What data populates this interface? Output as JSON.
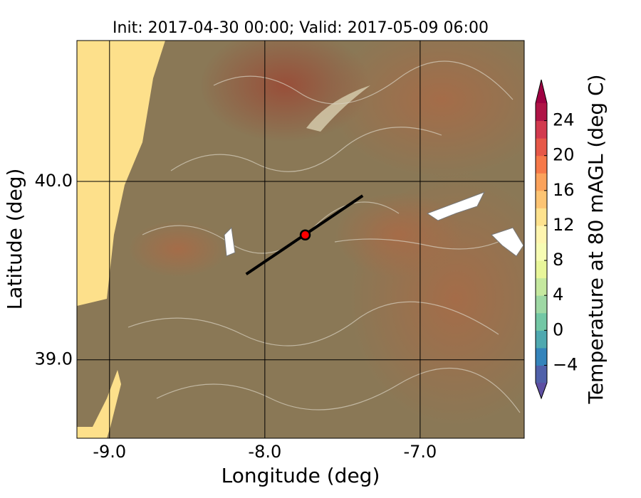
{
  "chart_data": {
    "type": "map",
    "title": "Init: 2017-04-30 00:00; Valid: 2017-05-09 06:00",
    "xlabel": "Longitude (deg)",
    "ylabel": "Latitude (deg)",
    "xlim": [
      -9.21,
      -6.33
    ],
    "ylim": [
      38.56,
      40.79
    ],
    "xticks": [
      {
        "value": -9,
        "label": "-9.0"
      },
      {
        "value": -8,
        "label": "-8.0"
      },
      {
        "value": -7,
        "label": "-7.0"
      }
    ],
    "yticks": [
      {
        "value": 39,
        "label": "39.0"
      },
      {
        "value": 40,
        "label": "40.0"
      }
    ],
    "grid": true,
    "transect": {
      "lon": [
        -8.12,
        -7.37
      ],
      "lat": [
        39.48,
        39.92
      ],
      "color": "#000000"
    },
    "point": {
      "lon": -7.74,
      "lat": 39.7,
      "color": "#ff0000"
    },
    "colorbar": {
      "label": "Temperature at 80 mAGL (deg C)",
      "clim": [
        -6,
        26
      ],
      "ticks": [
        {
          "value": -4,
          "label": "−4"
        },
        0,
        4,
        8,
        12,
        16,
        20,
        24
      ],
      "colors": [
        "#5e4fa2",
        "#3288bd",
        "#66c2a5",
        "#abdda4",
        "#e6f598",
        "#ffffbf",
        "#fee08b",
        "#fdae61",
        "#f46d43",
        "#d53e4f",
        "#9e0142"
      ]
    }
  }
}
